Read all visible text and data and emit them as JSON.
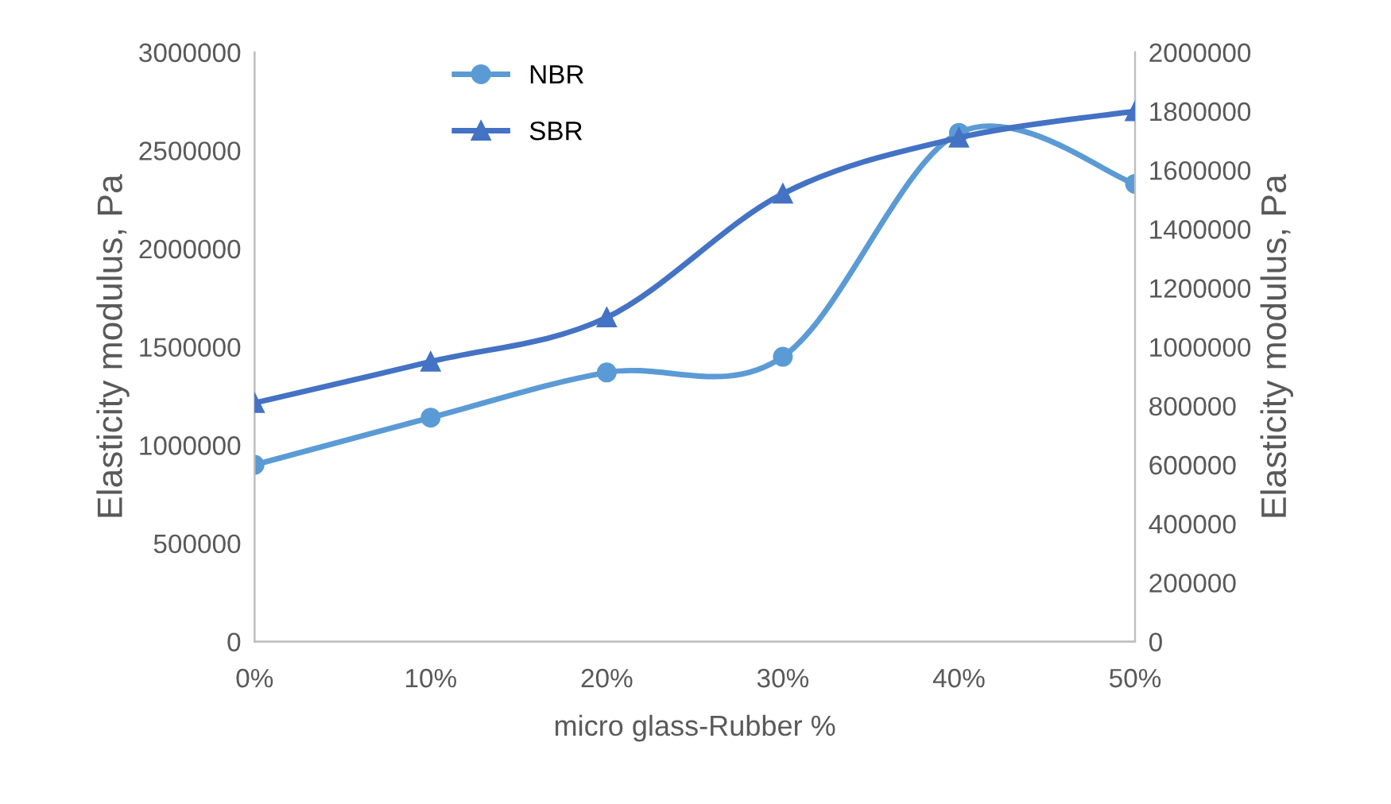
{
  "chart_data": {
    "type": "line",
    "xlabel": "micro glass-Rubber %",
    "ylabel": "Elasticity modulus, Pa",
    "y2label": "Elasticity modulus, Pa",
    "categories": [
      "0%",
      "10%",
      "20%",
      "30%",
      "40%",
      "50%"
    ],
    "series": [
      {
        "name": "NBR",
        "color": "#5b9bd5",
        "marker": "circle",
        "values": [
          900000,
          1140000,
          1370000,
          1450000,
          2590000,
          2330000
        ]
      },
      {
        "name": "SBR",
        "color": "#4472c4",
        "marker": "triangle",
        "axis": "y2",
        "values": [
          810000,
          950000,
          1100000,
          1520000,
          1710000,
          1800000
        ]
      }
    ],
    "ylim": [
      0,
      3000000
    ],
    "yticks": [
      0,
      500000,
      1000000,
      1500000,
      2000000,
      2500000,
      3000000
    ],
    "y2lim": [
      0,
      2000000
    ],
    "y2ticks": [
      0,
      200000,
      400000,
      600000,
      800000,
      1000000,
      1200000,
      1400000,
      1600000,
      1800000,
      2000000
    ],
    "grid": false,
    "legend": "top left",
    "line_style": "solid"
  }
}
